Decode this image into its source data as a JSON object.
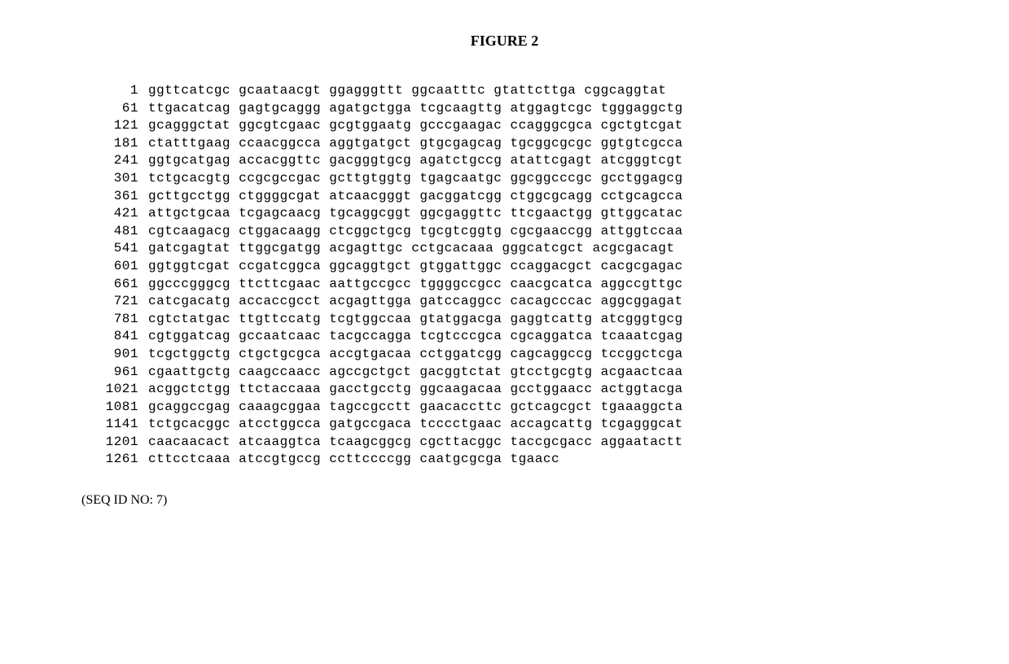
{
  "title": "FIGURE 2",
  "seq_id_label": "(SEQ ID NO: 7)",
  "block_width": 10,
  "blocks_per_row": 6,
  "rows": [
    {
      "pos": "1",
      "blocks": [
        "ggttcatcgc",
        "gcaataacgt",
        "ggagggttt",
        "ggcaatttc",
        "gtattcttga",
        "cggcaggtat"
      ]
    },
    {
      "pos": "61",
      "blocks": [
        "ttgacatcag",
        "gagtgcaggg",
        "agatgctgga",
        "tcgcaagttg",
        "atggagtcgc",
        "tgggaggctg"
      ]
    },
    {
      "pos": "121",
      "blocks": [
        "gcagggctat",
        "ggcgtcgaac",
        "gcgtggaatg",
        "gcccgaagac",
        "ccagggcgca",
        "cgctgtcgat"
      ]
    },
    {
      "pos": "181",
      "blocks": [
        "ctatttgaag",
        "ccaacggcca",
        "aggtgatgct",
        "gtgcgagcag",
        "tgcggcgcgc",
        "ggtgtcgcca"
      ]
    },
    {
      "pos": "241",
      "blocks": [
        "ggtgcatgag",
        "accacggttc",
        "gacgggtgcg",
        "agatctgccg",
        "atattcgagt",
        "atcgggtcgt"
      ]
    },
    {
      "pos": "301",
      "blocks": [
        "tctgcacgtg",
        "ccgcgccgac",
        "gcttgtggtg",
        "tgagcaatgc",
        "ggcggcccgc",
        "gcctggagcg"
      ]
    },
    {
      "pos": "361",
      "blocks": [
        "gcttgcctgg",
        "ctggggcgat",
        "atcaacgggt",
        "gacggatcgg",
        "ctggcgcagg",
        "cctgcagcca"
      ]
    },
    {
      "pos": "421",
      "blocks": [
        "attgctgcaa",
        "tcgagcaacg",
        "tgcaggcggt",
        "ggcgaggttc",
        "ttcgaactgg",
        "gttggcatac"
      ]
    },
    {
      "pos": "481",
      "blocks": [
        "cgtcaagacg",
        "ctggacaagg",
        "ctcggctgcg",
        "tgcgtcggtg",
        "cgcgaaccgg",
        "attggtccaa"
      ]
    },
    {
      "pos": "541",
      "blocks": [
        "gatcgagtat",
        "ttggcgatgg",
        "acgagttgc",
        "cctgcacaaa",
        "gggcatcgct",
        "acgcgacagt"
      ]
    },
    {
      "pos": "601",
      "blocks": [
        "ggtggtcgat",
        "ccgatcggca",
        "ggcaggtgct",
        "gtggattggc",
        "ccaggacgct",
        "cacgcgagac"
      ]
    },
    {
      "pos": "661",
      "blocks": [
        "ggcccgggcg",
        "ttcttcgaac",
        "aattgccgcc",
        "tggggccgcc",
        "caacgcatca",
        "aggccgttgc"
      ]
    },
    {
      "pos": "721",
      "blocks": [
        "catcgacatg",
        "accaccgcct",
        "acgagttgga",
        "gatccaggcc",
        "cacagcccac",
        "aggcggagat"
      ]
    },
    {
      "pos": "781",
      "blocks": [
        "cgtctatgac",
        "ttgttccatg",
        "tcgtggccaa",
        "gtatggacga",
        "gaggtcattg",
        "atcgggtgcg"
      ]
    },
    {
      "pos": "841",
      "blocks": [
        "cgtggatcag",
        "gccaatcaac",
        "tacgccagga",
        "tcgtcccgca",
        "cgcaggatca",
        "tcaaatcgag"
      ]
    },
    {
      "pos": "901",
      "blocks": [
        "tcgctggctg",
        "ctgctgcgca",
        "accgtgacaa",
        "cctggatcgg",
        "cagcaggccg",
        "tccggctcga"
      ]
    },
    {
      "pos": "961",
      "blocks": [
        "cgaattgctg",
        "caagccaacc",
        "agccgctgct",
        "gacggtctat",
        "gtcctgcgtg",
        "acgaactcaa"
      ]
    },
    {
      "pos": "1021",
      "blocks": [
        "acggctctgg",
        "ttctaccaaa",
        "gacctgcctg",
        "ggcaagacaa",
        "gcctggaacc",
        "actggtacga"
      ]
    },
    {
      "pos": "1081",
      "blocks": [
        "gcaggccgag",
        "caaagcggaa",
        "tagccgcctt",
        "gaacaccttc",
        "gctcagcgct",
        "tgaaaggcta"
      ]
    },
    {
      "pos": "1141",
      "blocks": [
        "tctgcacggc",
        "atcctggcca",
        "gatgccgaca",
        "tcccctgaac",
        "accagcattg",
        "tcgagggcat"
      ]
    },
    {
      "pos": "1201",
      "blocks": [
        "caacaacact",
        "atcaaggtca",
        "tcaagcggcg",
        "cgcttacggc",
        "taccgcgacc",
        "aggaatactt"
      ]
    },
    {
      "pos": "1261",
      "blocks": [
        "cttcctcaaa",
        "atccgtgccg",
        "ccttccccgg",
        "caatgcgcga",
        "tgaacc",
        ""
      ]
    }
  ]
}
